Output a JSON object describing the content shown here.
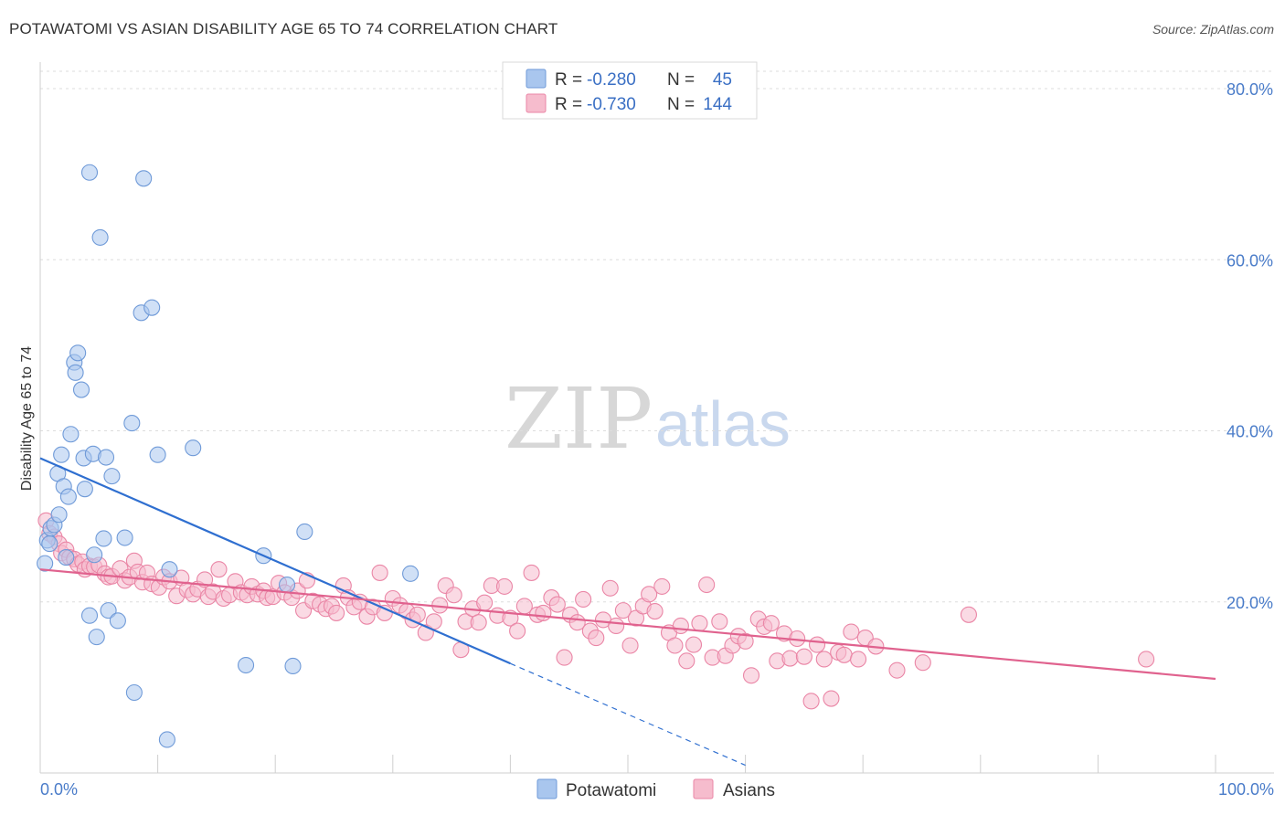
{
  "title": "POTAWATOMI VS ASIAN DISABILITY AGE 65 TO 74 CORRELATION CHART",
  "source": "Source: ZipAtlas.com",
  "watermark": {
    "zip": "ZIP",
    "atlas": "atlas"
  },
  "legend": {
    "rows": [
      {
        "r_label": "R =",
        "r_value": "-0.280",
        "n_label": "N =",
        "n_value": "45",
        "color": "#a9c6ee",
        "stroke": "#6f9ad8"
      },
      {
        "r_label": "R =",
        "r_value": "-0.730",
        "n_label": "N =",
        "n_value": "144",
        "color": "#f6bccd",
        "stroke": "#ea86a6"
      }
    ]
  },
  "bottom_legend": [
    {
      "label": "Potawatomi",
      "color": "#a9c6ee",
      "stroke": "#6f9ad8"
    },
    {
      "label": "Asians",
      "color": "#f6bccd",
      "stroke": "#ea86a6"
    }
  ],
  "chart_data": {
    "type": "scatter",
    "title": "POTAWATOMI VS ASIAN DISABILITY AGE 65 TO 74 CORRELATION CHART",
    "xlabel": "",
    "ylabel": "Disability Age 65 to 74",
    "xlim": [
      0,
      100
    ],
    "ylim": [
      0,
      80
    ],
    "x_tick_labels": [
      "0.0%",
      "100.0%"
    ],
    "y_ticks": [
      20,
      40,
      60,
      80
    ],
    "y_tick_labels": [
      "20.0%",
      "40.0%",
      "60.0%",
      "80.0%"
    ],
    "grid": true,
    "legend_position": "top-center",
    "series": [
      {
        "name": "Potawatomi",
        "color": "#6f9ad8",
        "fill": "#a9c6ee",
        "points": [
          [
            0.4,
            24.5
          ],
          [
            0.6,
            27.2
          ],
          [
            0.8,
            26.8
          ],
          [
            0.9,
            28.6
          ],
          [
            1.2,
            29.0
          ],
          [
            1.5,
            35.0
          ],
          [
            1.6,
            30.2
          ],
          [
            1.8,
            37.2
          ],
          [
            2.0,
            33.5
          ],
          [
            2.2,
            25.2
          ],
          [
            2.4,
            32.3
          ],
          [
            2.6,
            39.6
          ],
          [
            2.9,
            48.0
          ],
          [
            3.0,
            46.8
          ],
          [
            3.2,
            49.1
          ],
          [
            3.5,
            44.8
          ],
          [
            3.7,
            36.8
          ],
          [
            3.8,
            33.2
          ],
          [
            4.2,
            70.2
          ],
          [
            4.5,
            37.3
          ],
          [
            4.6,
            25.5
          ],
          [
            4.8,
            15.9
          ],
          [
            5.1,
            62.6
          ],
          [
            5.4,
            27.4
          ],
          [
            5.6,
            36.9
          ],
          [
            5.8,
            19.0
          ],
          [
            6.1,
            34.7
          ],
          [
            6.6,
            17.8
          ],
          [
            7.2,
            27.5
          ],
          [
            7.8,
            40.9
          ],
          [
            8.0,
            9.4
          ],
          [
            8.6,
            53.8
          ],
          [
            8.8,
            69.5
          ],
          [
            9.5,
            54.4
          ],
          [
            10.0,
            37.2
          ],
          [
            10.8,
            3.9
          ],
          [
            11.0,
            23.8
          ],
          [
            13.0,
            38.0
          ],
          [
            17.5,
            12.6
          ],
          [
            19.0,
            25.4
          ],
          [
            21.0,
            22.0
          ],
          [
            21.5,
            12.5
          ],
          [
            22.5,
            28.2
          ],
          [
            31.5,
            23.3
          ],
          [
            4.2,
            18.4
          ]
        ],
        "trend": {
          "x0": 0,
          "y0": 36.8,
          "x1": 40,
          "y1": 12.8,
          "dash_x1": 60,
          "dash_y1": 0.9
        }
      },
      {
        "name": "Asians",
        "color": "#ea86a6",
        "fill": "#f6bccd",
        "points": [
          [
            0.5,
            29.5
          ],
          [
            0.8,
            28.0
          ],
          [
            1.2,
            27.6
          ],
          [
            1.6,
            26.8
          ],
          [
            1.8,
            25.7
          ],
          [
            2.2,
            26.1
          ],
          [
            2.5,
            25.2
          ],
          [
            2.9,
            25.0
          ],
          [
            3.2,
            24.4
          ],
          [
            3.6,
            24.7
          ],
          [
            3.8,
            23.8
          ],
          [
            4.2,
            24.2
          ],
          [
            4.6,
            24.1
          ],
          [
            5.0,
            24.3
          ],
          [
            5.5,
            23.3
          ],
          [
            5.8,
            22.9
          ],
          [
            6.1,
            23.0
          ],
          [
            6.8,
            23.9
          ],
          [
            7.2,
            22.5
          ],
          [
            7.6,
            22.9
          ],
          [
            8.0,
            24.8
          ],
          [
            8.3,
            23.5
          ],
          [
            8.7,
            22.3
          ],
          [
            9.1,
            23.4
          ],
          [
            9.5,
            22.1
          ],
          [
            10.1,
            21.7
          ],
          [
            10.5,
            22.9
          ],
          [
            11.0,
            22.4
          ],
          [
            11.6,
            20.7
          ],
          [
            12.0,
            22.8
          ],
          [
            12.5,
            21.4
          ],
          [
            13.0,
            20.9
          ],
          [
            13.4,
            21.5
          ],
          [
            14.0,
            22.6
          ],
          [
            14.3,
            20.6
          ],
          [
            14.7,
            21.2
          ],
          [
            15.2,
            23.8
          ],
          [
            15.6,
            20.4
          ],
          [
            16.1,
            20.8
          ],
          [
            16.6,
            22.4
          ],
          [
            17.1,
            21.1
          ],
          [
            17.6,
            20.8
          ],
          [
            18.0,
            21.8
          ],
          [
            18.5,
            20.9
          ],
          [
            19.0,
            21.3
          ],
          [
            19.3,
            20.5
          ],
          [
            19.8,
            20.6
          ],
          [
            20.3,
            22.2
          ],
          [
            20.8,
            21.1
          ],
          [
            21.4,
            20.5
          ],
          [
            21.9,
            21.3
          ],
          [
            22.4,
            19.0
          ],
          [
            22.7,
            22.5
          ],
          [
            23.2,
            20.1
          ],
          [
            23.8,
            19.7
          ],
          [
            24.3,
            19.2
          ],
          [
            24.8,
            19.5
          ],
          [
            25.2,
            18.7
          ],
          [
            25.8,
            21.9
          ],
          [
            26.2,
            20.5
          ],
          [
            26.7,
            19.4
          ],
          [
            27.2,
            20.0
          ],
          [
            27.8,
            18.3
          ],
          [
            28.3,
            19.4
          ],
          [
            28.9,
            23.4
          ],
          [
            29.3,
            18.7
          ],
          [
            30.0,
            20.4
          ],
          [
            30.6,
            19.6
          ],
          [
            31.2,
            18.9
          ],
          [
            31.7,
            17.9
          ],
          [
            32.1,
            18.5
          ],
          [
            32.8,
            16.4
          ],
          [
            33.5,
            17.7
          ],
          [
            34.0,
            19.6
          ],
          [
            34.5,
            21.9
          ],
          [
            35.2,
            20.8
          ],
          [
            35.8,
            14.4
          ],
          [
            36.2,
            17.7
          ],
          [
            36.8,
            19.2
          ],
          [
            37.3,
            17.6
          ],
          [
            37.8,
            19.9
          ],
          [
            38.4,
            21.9
          ],
          [
            38.9,
            18.4
          ],
          [
            39.5,
            21.8
          ],
          [
            40.0,
            18.1
          ],
          [
            40.6,
            16.6
          ],
          [
            41.2,
            19.5
          ],
          [
            41.8,
            23.4
          ],
          [
            42.3,
            18.5
          ],
          [
            42.8,
            18.7
          ],
          [
            43.5,
            20.5
          ],
          [
            44.0,
            19.7
          ],
          [
            44.6,
            13.5
          ],
          [
            45.1,
            18.5
          ],
          [
            45.7,
            17.6
          ],
          [
            46.2,
            20.3
          ],
          [
            46.8,
            16.6
          ],
          [
            47.3,
            15.8
          ],
          [
            47.9,
            17.9
          ],
          [
            48.5,
            21.6
          ],
          [
            49.0,
            17.2
          ],
          [
            49.6,
            19.0
          ],
          [
            50.2,
            14.9
          ],
          [
            50.7,
            18.1
          ],
          [
            51.3,
            19.5
          ],
          [
            51.8,
            20.9
          ],
          [
            52.3,
            18.9
          ],
          [
            52.9,
            21.8
          ],
          [
            53.5,
            16.4
          ],
          [
            54.0,
            14.9
          ],
          [
            54.5,
            17.2
          ],
          [
            55.0,
            13.1
          ],
          [
            55.6,
            15.0
          ],
          [
            56.1,
            17.5
          ],
          [
            56.7,
            22.0
          ],
          [
            57.2,
            13.5
          ],
          [
            57.8,
            17.7
          ],
          [
            58.3,
            13.7
          ],
          [
            58.9,
            14.9
          ],
          [
            59.4,
            16.0
          ],
          [
            60.0,
            15.4
          ],
          [
            60.5,
            11.4
          ],
          [
            61.1,
            18.0
          ],
          [
            61.6,
            17.1
          ],
          [
            62.2,
            17.5
          ],
          [
            62.7,
            13.1
          ],
          [
            63.3,
            16.3
          ],
          [
            63.8,
            13.4
          ],
          [
            64.4,
            15.7
          ],
          [
            65.0,
            13.6
          ],
          [
            65.6,
            8.4
          ],
          [
            66.1,
            15.0
          ],
          [
            66.7,
            13.3
          ],
          [
            67.3,
            8.7
          ],
          [
            67.9,
            14.1
          ],
          [
            68.4,
            13.8
          ],
          [
            69.0,
            16.5
          ],
          [
            69.6,
            13.3
          ],
          [
            70.2,
            15.8
          ],
          [
            71.1,
            14.8
          ],
          [
            72.9,
            12.0
          ],
          [
            75.1,
            12.9
          ],
          [
            79.0,
            18.5
          ],
          [
            94.1,
            13.3
          ]
        ],
        "trend": {
          "x0": 0,
          "y0": 23.8,
          "x1": 100,
          "y1": 11.0
        }
      }
    ]
  }
}
